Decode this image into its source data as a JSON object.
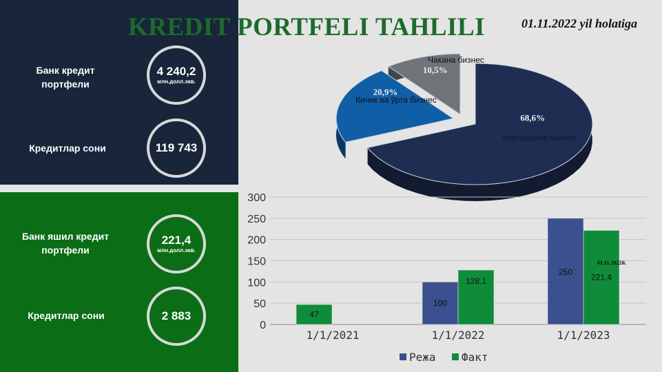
{
  "header": {
    "title": "KREDIT PORTFELI TAHLILI",
    "date": "01.11.2022 yil holatiga"
  },
  "bank_panel": {
    "portfolio_label": "Банк кредит портфели",
    "portfolio_value": "4 240,2",
    "portfolio_unit": "млн.долл.экв.",
    "count_label": "Кредитлар сони",
    "count_value": "119 743"
  },
  "green_panel": {
    "portfolio_label": "Банк яшил кредит портфели",
    "portfolio_value": "221,4",
    "portfolio_unit": "млн.долл.экв.",
    "count_label": "Кредитлар сони",
    "count_value": "2 883"
  },
  "colors": {
    "dark_navy": "#18253a",
    "green_panel": "#0b6d16",
    "title_green": "#1d6b2c",
    "plan_blue": "#3c4f8e",
    "fact_green": "#0f8c3a",
    "corporate": "#1f2d52",
    "small_medium": "#0f5ea6",
    "retail": "#6f7478"
  },
  "chart_data": [
    {
      "type": "pie",
      "title": "",
      "slices": [
        {
          "label": "Корпоратив бизнес",
          "value": 68.6,
          "display": "68,6%"
        },
        {
          "label": "Кичик ва ўрта бизнес",
          "value": 20.9,
          "display": "20,9%"
        },
        {
          "label": "Чакана бизнес",
          "value": 10.5,
          "display": "10,5%"
        }
      ]
    },
    {
      "type": "bar",
      "title": "",
      "categories": [
        "1/1/2021",
        "1/1/2022",
        "1/1/2023"
      ],
      "series": [
        {
          "name": "Режа",
          "values": [
            null,
            100,
            250
          ],
          "labels": [
            "",
            "100",
            "250"
          ]
        },
        {
          "name": "Факт",
          "values": [
            47,
            128.1,
            221.4
          ],
          "labels": [
            "47",
            "128.1",
            "221.4"
          ]
        }
      ],
      "ylim": [
        0,
        300
      ],
      "yticks": [
        0,
        50,
        100,
        150,
        200,
        250,
        300
      ],
      "annotation": "01.11.2022й.",
      "legend_position": "bottom",
      "grid": true
    }
  ]
}
